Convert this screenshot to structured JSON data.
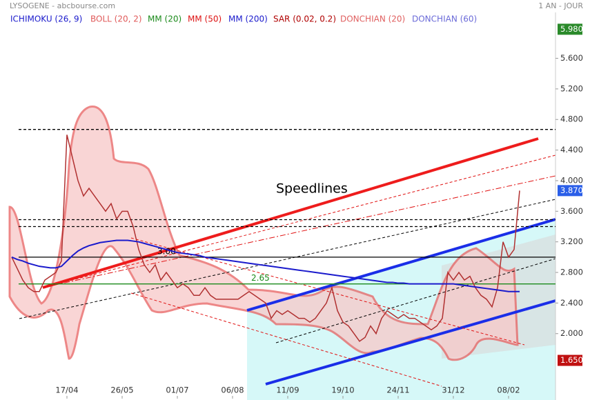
{
  "chart_data": {
    "type": "line",
    "title": "LYSOGENE - abcbourse.com",
    "period": "1 AN - JOUR",
    "annotation": "Speedlines",
    "legend": [
      {
        "label": "ICHIMOKU (26, 9)",
        "color": "#1a1acc"
      },
      {
        "label": "BOLL (20, 2)",
        "color": "#e05a5a"
      },
      {
        "label": "MM (20)",
        "color": "#1a8a1a"
      },
      {
        "label": "MM (50)",
        "color": "#dd1111"
      },
      {
        "label": "MM (200)",
        "color": "#1a1acc"
      },
      {
        "label": "SAR (0.02, 0.2)",
        "color": "#b00000"
      },
      {
        "label": "DONCHIAN (20)",
        "color": "#e06060"
      },
      {
        "label": "DONCHIAN (60)",
        "color": "#6a6ad8"
      }
    ],
    "categories": [
      null,
      null,
      null,
      null,
      null,
      null,
      null,
      null,
      null,
      null,
      "17/04",
      null,
      null,
      null,
      null,
      null,
      null,
      null,
      null,
      null,
      "26/05",
      null,
      null,
      null,
      null,
      null,
      null,
      null,
      null,
      null,
      "01/07",
      null,
      null,
      null,
      null,
      null,
      null,
      null,
      null,
      null,
      "06/08",
      null,
      null,
      null,
      null,
      null,
      null,
      null,
      null,
      null,
      "11/09",
      null,
      null,
      null,
      null,
      null,
      null,
      null,
      null,
      null,
      "19/10",
      null,
      null,
      null,
      null,
      null,
      null,
      null,
      null,
      null,
      "24/11",
      null,
      null,
      null,
      null,
      null,
      null,
      null,
      null,
      null,
      "31/12",
      null,
      null,
      null,
      null,
      null,
      null,
      null,
      null,
      null,
      "08/02",
      null,
      null
    ],
    "series": [
      {
        "color": "#b03030",
        "values": [
          3.0,
          2.85,
          2.7,
          2.6,
          2.55,
          2.55,
          2.7,
          2.75,
          2.8,
          2.95,
          4.6,
          4.3,
          4.0,
          3.8,
          3.9,
          3.8,
          3.7,
          3.6,
          3.7,
          3.5,
          3.6,
          3.6,
          3.4,
          3.1,
          2.9,
          2.8,
          2.9,
          2.7,
          2.8,
          2.7,
          2.6,
          2.65,
          2.6,
          2.5,
          2.5,
          2.6,
          2.5,
          2.45,
          2.45,
          2.45,
          2.45,
          2.45,
          2.5,
          2.55,
          2.5,
          2.45,
          2.4,
          2.2,
          2.3,
          2.25,
          2.3,
          2.25,
          2.2,
          2.2,
          2.15,
          2.2,
          2.3,
          2.4,
          2.6,
          2.3,
          2.15,
          2.1,
          2.0,
          1.9,
          1.95,
          2.1,
          2.0,
          2.2,
          2.3,
          2.25,
          2.2,
          2.25,
          2.2,
          2.2,
          2.15,
          2.1,
          2.05,
          2.1,
          2.2,
          2.8,
          2.7,
          2.8,
          2.7,
          2.75,
          2.6,
          2.5,
          2.45,
          2.35,
          2.6,
          3.2,
          3.0,
          3.1,
          3.87
        ]
      },
      {
        "color": "#1a1acc",
        "values": [
          3.0,
          2.97,
          2.95,
          2.92,
          2.9,
          2.88,
          2.87,
          2.86,
          2.86,
          2.88,
          2.95,
          3.02,
          3.08,
          3.12,
          3.15,
          3.17,
          3.19,
          3.2,
          3.21,
          3.22,
          3.22,
          3.22,
          3.21,
          3.2,
          3.18,
          3.16,
          3.14,
          3.12,
          3.1,
          3.08,
          3.06,
          3.05,
          3.04,
          3.03,
          3.02,
          3.0,
          2.99,
          2.98,
          2.97,
          2.96,
          2.95,
          2.94,
          2.93,
          2.92,
          2.91,
          2.9,
          2.89,
          2.88,
          2.87,
          2.86,
          2.85,
          2.84,
          2.83,
          2.82,
          2.81,
          2.8,
          2.79,
          2.78,
          2.77,
          2.76,
          2.75,
          2.74,
          2.73,
          2.72,
          2.71,
          2.7,
          2.69,
          2.68,
          2.67,
          2.67,
          2.66,
          2.66,
          2.65,
          2.65,
          2.65,
          2.65,
          2.65,
          2.65,
          2.65,
          2.65,
          2.65,
          2.64,
          2.63,
          2.62,
          2.61,
          2.6,
          2.59,
          2.58,
          2.57,
          2.56,
          2.55,
          2.55,
          2.55
        ]
      }
    ],
    "levels": [
      {
        "value": 4.67,
        "color": "#000000"
      },
      {
        "value": 3.49,
        "color": "#000000"
      },
      {
        "value": 3.4,
        "color": "#000000"
      },
      {
        "value": 3.0,
        "label": "3.00",
        "color": "#000000"
      },
      {
        "value": 2.65,
        "label": "2.65",
        "color": "#1a8a1a"
      }
    ],
    "price_boxes": [
      {
        "value": 5.98,
        "label": "5.980",
        "color": "#2a8a2a"
      },
      {
        "value": 3.87,
        "label": "3.870",
        "color": "#2a5ee8"
      },
      {
        "value": 1.65,
        "label": "1.650",
        "color": "#c01010"
      }
    ],
    "ylim": [
      1.15,
      6.2
    ],
    "yticks": [
      {
        "value": 2.0,
        "label": "2.000"
      },
      {
        "value": 2.4,
        "label": "2.400"
      },
      {
        "value": 2.8,
        "label": "2.800"
      },
      {
        "value": 3.2,
        "label": "3.200"
      },
      {
        "value": 3.6,
        "label": "3.600"
      },
      {
        "value": 4.0,
        "label": "4.000"
      },
      {
        "value": 4.4,
        "label": "4.400"
      },
      {
        "value": 4.8,
        "label": "4.800"
      },
      {
        "value": 5.2,
        "label": "5.200"
      },
      {
        "value": 5.6,
        "label": "5.600"
      }
    ]
  }
}
